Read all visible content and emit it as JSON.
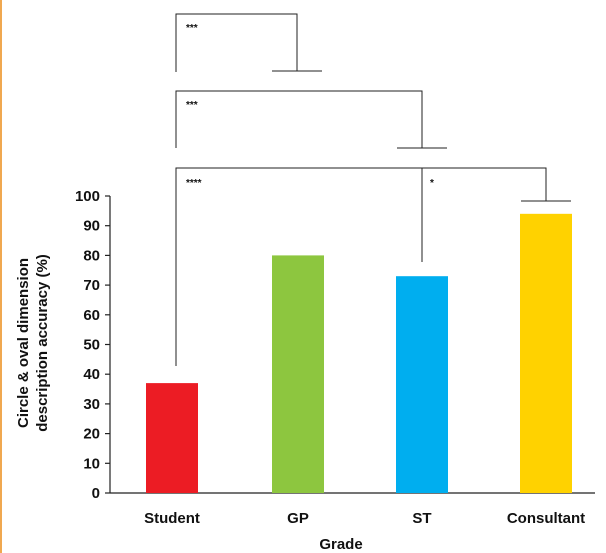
{
  "chart_data": {
    "type": "bar",
    "title": "",
    "xlabel": "Grade",
    "ylabel_lines": [
      "Circle & oval dimension",
      "description accuracy (%)"
    ],
    "categories": [
      "Student",
      "GP",
      "ST",
      "Consultant"
    ],
    "values": [
      37,
      80,
      73,
      94
    ],
    "colors": [
      "#ec1c24",
      "#8dc63f",
      "#00aeef",
      "#ffd200"
    ],
    "ylim": [
      0,
      100
    ],
    "yticks": [
      "0",
      "10",
      "20",
      "30",
      "40",
      "50",
      "60",
      "70",
      "80",
      "90",
      "100"
    ],
    "grid": false,
    "legend": "none",
    "significance": [
      {
        "from": "Student",
        "to": "GP",
        "label": "***"
      },
      {
        "from": "Student",
        "to": "ST",
        "label": "***"
      },
      {
        "from": "Student",
        "to": "Consultant",
        "label": "****"
      },
      {
        "from": "ST",
        "to": "Consultant",
        "label": "*"
      }
    ]
  }
}
